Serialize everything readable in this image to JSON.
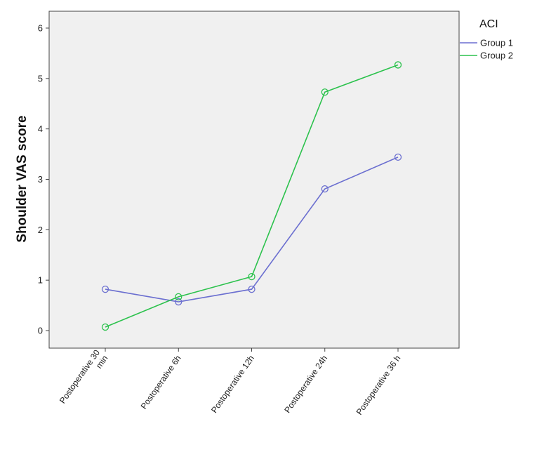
{
  "chart_data": {
    "type": "line",
    "ylabel": "Shoulder VAS score",
    "xlabel": "",
    "ylim": [
      0,
      6
    ],
    "yticks": [
      "0",
      "1",
      "2",
      "3",
      "4",
      "5",
      "6"
    ],
    "categories": [
      "Postoperative 30 min",
      "Postoperative 6h",
      "Postoperative 12h",
      "Postoperative 24h",
      "Postoperative 36 h"
    ],
    "category_lines": [
      [
        "Postoperative 30",
        "min"
      ],
      [
        "Postoperative 6h"
      ],
      [
        "Postoperative 12h"
      ],
      [
        "Postoperative 24h"
      ],
      [
        "Postoperative 36 h"
      ]
    ],
    "series": [
      {
        "name": "Group 1",
        "color": "#6b6fd0",
        "values": [
          0.82,
          0.57,
          0.82,
          2.81,
          3.44
        ]
      },
      {
        "name": "Group 2",
        "color": "#2cc24d",
        "values": [
          0.07,
          0.67,
          1.07,
          4.73,
          5.27
        ]
      }
    ],
    "legend": {
      "title": "ACI",
      "placement": "right"
    },
    "grid": false,
    "plot_background": "#f0f0f0"
  }
}
